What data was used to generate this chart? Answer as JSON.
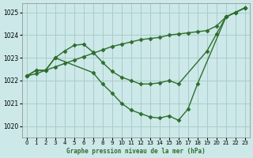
{
  "title": "Graphe pression niveau de la mer (hPa)",
  "background_color": "#cce8e8",
  "grid_color": "#aacccc",
  "line_color": "#2d6e2d",
  "marker": "D",
  "markersize": 2.5,
  "linewidth": 1.0,
  "xlim": [
    -0.5,
    23.5
  ],
  "ylim": [
    1019.5,
    1025.4
  ],
  "xticks": [
    0,
    1,
    2,
    3,
    4,
    5,
    6,
    7,
    8,
    9,
    10,
    11,
    12,
    13,
    14,
    15,
    16,
    17,
    18,
    19,
    20,
    21,
    22,
    23
  ],
  "yticks": [
    1020,
    1021,
    1022,
    1023,
    1024,
    1025
  ],
  "series": [
    {
      "x": [
        0,
        1,
        2,
        3,
        4,
        5,
        6,
        7,
        8,
        9,
        10,
        11,
        12,
        13,
        14,
        15,
        16,
        17,
        18,
        19,
        20,
        21,
        22,
        23
      ],
      "y": [
        1022.2,
        1022.3,
        1022.45,
        1022.6,
        1022.75,
        1022.9,
        1023.05,
        1023.2,
        1023.35,
        1023.5,
        1023.6,
        1023.7,
        1023.8,
        1023.85,
        1023.9,
        1024.0,
        1024.05,
        1024.1,
        1024.15,
        1024.2,
        1024.4,
        1024.8,
        1025.0,
        1025.2
      ]
    },
    {
      "x": [
        0,
        1,
        2,
        3,
        4,
        5,
        6,
        7,
        8,
        9,
        10,
        11,
        12,
        13,
        14,
        15,
        16,
        19,
        20,
        21,
        22,
        23
      ],
      "y": [
        1022.2,
        1022.45,
        1022.45,
        1023.0,
        1023.3,
        1023.55,
        1023.6,
        1023.25,
        1022.8,
        1022.4,
        1022.15,
        1022.0,
        1021.85,
        1021.85,
        1021.9,
        1022.0,
        1021.85,
        1023.3,
        1024.05,
        1024.8,
        1025.0,
        1025.2
      ]
    },
    {
      "x": [
        0,
        1,
        2,
        3,
        7,
        8,
        9,
        10,
        11,
        12,
        13,
        14,
        15,
        16,
        17,
        18,
        21,
        22,
        23
      ],
      "y": [
        1022.2,
        1022.45,
        1022.45,
        1023.0,
        1022.35,
        1021.85,
        1021.45,
        1021.0,
        1020.7,
        1020.55,
        1020.4,
        1020.35,
        1020.45,
        1020.25,
        1020.75,
        1021.85,
        1024.8,
        1025.0,
        1025.2
      ]
    }
  ]
}
